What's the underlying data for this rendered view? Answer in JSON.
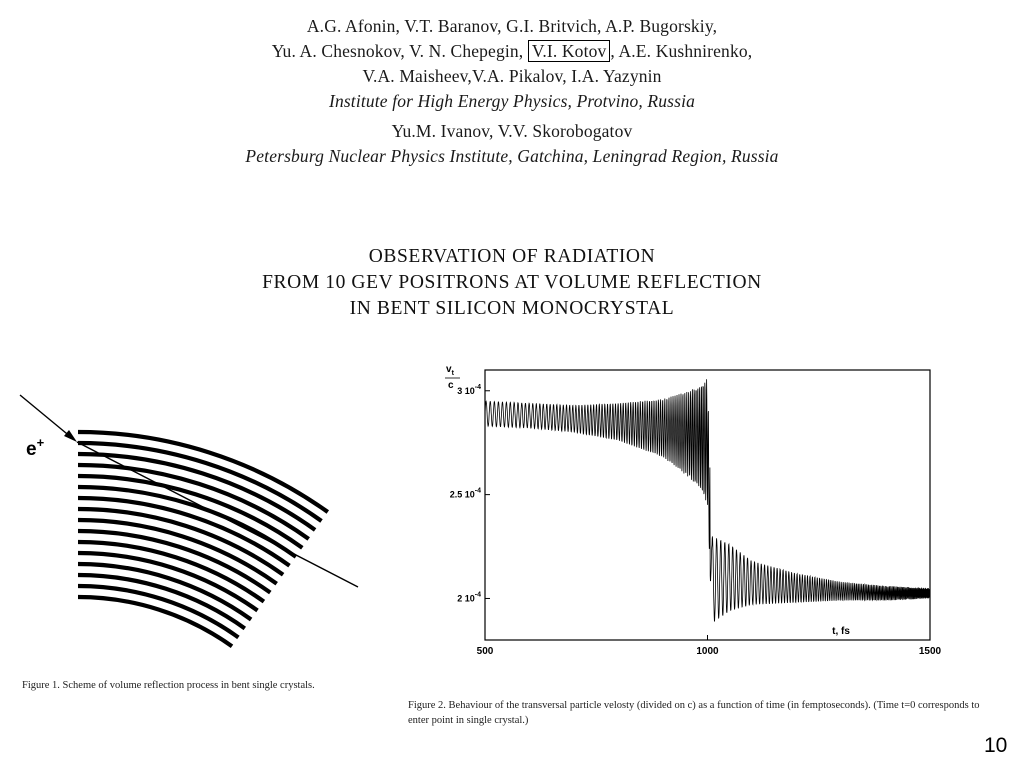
{
  "authors": {
    "line1": "A.G. Afonin, V.T. Baranov, G.I. Britvich, A.P. Bugorskiy,",
    "line2_pre": "Yu. A. Chesnokov, V. N. Chepegin, ",
    "line2_boxed": "V.I. Kotov",
    "line2_post": ", A.E. Kushnirenko,",
    "line3": "V.A. Maisheev,V.A. Pikalov, I.A. Yazynin",
    "inst1": "Institute for High Energy Physics, Protvino, Russia",
    "line4": "Yu.M. Ivanov, V.V. Skorobogatov",
    "inst2": "Petersburg Nuclear Physics Institute, Gatchina, Leningrad Region, Russia"
  },
  "title": {
    "line1": "OBSERVATION OF RADIATION",
    "line2": "FROM 10 GEV POSITRONS AT VOLUME REFLECTION",
    "line3": "IN BENT SILICON MONOCRYSTAL"
  },
  "figure1": {
    "particle_label": "e",
    "particle_sup": "+",
    "caption": "Figure 1.   Scheme of volume reflection process in bent single crystals."
  },
  "figure2": {
    "caption": "Figure 2.   Behaviour of the transversal particle velosty (divided on c) as a function of time (in femptoseconds). (Time t=0 corresponds to enter point in single crystal.)"
  },
  "page_number": "10",
  "chart_data": {
    "type": "line",
    "ylabel_num": "v",
    "ylabel_sub": "t",
    "ylabel_den": "c",
    "xlabel": "t, fs",
    "xlim": [
      500,
      1500
    ],
    "ylim": [
      0.00018,
      0.00031
    ],
    "x_ticks": [
      {
        "value": 500,
        "label": "500"
      },
      {
        "value": 1000,
        "label": "1000"
      },
      {
        "value": 1500,
        "label": "1500"
      }
    ],
    "y_ticks": [
      {
        "value": 0.0002,
        "label": "2 10",
        "exp": "-4"
      },
      {
        "value": 0.00025,
        "label": "2.5 10",
        "exp": "-4"
      },
      {
        "value": 0.0003,
        "label": "3 10",
        "exp": "-4"
      }
    ],
    "envelope_upper": [
      [
        500,
        0.000295
      ],
      [
        600,
        0.000294
      ],
      [
        700,
        0.000293
      ],
      [
        800,
        0.000294
      ],
      [
        900,
        0.000296
      ],
      [
        960,
        0.0003
      ],
      [
        985,
        0.000303
      ],
      [
        1000,
        0.000306
      ],
      [
        1010,
        0.00023
      ],
      [
        1050,
        0.000226
      ],
      [
        1100,
        0.000218
      ],
      [
        1200,
        0.000212
      ],
      [
        1300,
        0.000208
      ],
      [
        1400,
        0.000206
      ],
      [
        1500,
        0.000205
      ]
    ],
    "envelope_lower": [
      [
        500,
        0.000283
      ],
      [
        600,
        0.000282
      ],
      [
        700,
        0.00028
      ],
      [
        800,
        0.000276
      ],
      [
        900,
        0.000268
      ],
      [
        960,
        0.000258
      ],
      [
        985,
        0.000252
      ],
      [
        1000,
        0.000245
      ],
      [
        1010,
        0.000188
      ],
      [
        1050,
        0.000194
      ],
      [
        1100,
        0.000197
      ],
      [
        1200,
        0.000198
      ],
      [
        1300,
        0.000199
      ],
      [
        1400,
        0.000199
      ],
      [
        1500,
        0.0002
      ]
    ]
  }
}
